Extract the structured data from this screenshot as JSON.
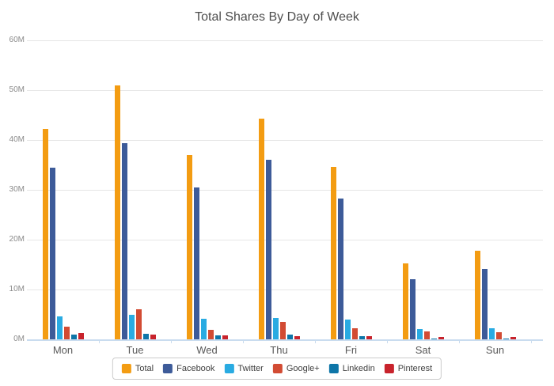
{
  "chart_data": {
    "type": "bar",
    "title": "Total Shares By Day of Week",
    "categories": [
      "Mon",
      "Tue",
      "Wed",
      "Thu",
      "Fri",
      "Sat",
      "Sun"
    ],
    "unit": "M",
    "ylim": [
      0,
      60
    ],
    "yticks": [
      "0M",
      "10M",
      "20M",
      "30M",
      "40M",
      "50M",
      "60M"
    ],
    "grid": true,
    "legend_position": "bottom-center",
    "series": [
      {
        "name": "Total",
        "color": "#F39C12",
        "values": [
          42.3,
          51.0,
          37.0,
          44.3,
          34.6,
          15.3,
          17.7
        ]
      },
      {
        "name": "Facebook",
        "color": "#3D5B99",
        "values": [
          34.5,
          39.4,
          30.4,
          36.1,
          28.3,
          12.0,
          14.1
        ]
      },
      {
        "name": "Twitter",
        "color": "#29ABE2",
        "values": [
          4.6,
          4.9,
          4.1,
          4.3,
          3.9,
          2.1,
          2.3
        ]
      },
      {
        "name": "Google+",
        "color": "#D24B33",
        "values": [
          2.6,
          6.0,
          1.9,
          3.5,
          2.2,
          1.6,
          1.4
        ]
      },
      {
        "name": "Linkedin",
        "color": "#0E76A8",
        "values": [
          0.9,
          1.1,
          0.8,
          0.9,
          0.7,
          0.2,
          0.1
        ]
      },
      {
        "name": "Pinterest",
        "color": "#C8232C",
        "values": [
          1.2,
          0.9,
          0.8,
          0.7,
          0.6,
          0.5,
          0.4
        ]
      }
    ],
    "colors": {
      "grid": "#e6e6e6",
      "axis": "#c9dcef",
      "title_text": "#4d4d4d",
      "ytick_text": "#8a8a8a",
      "xtick_text": "#595959",
      "legend_text": "#3f3f3f",
      "legend_border": "#cccccc"
    }
  }
}
